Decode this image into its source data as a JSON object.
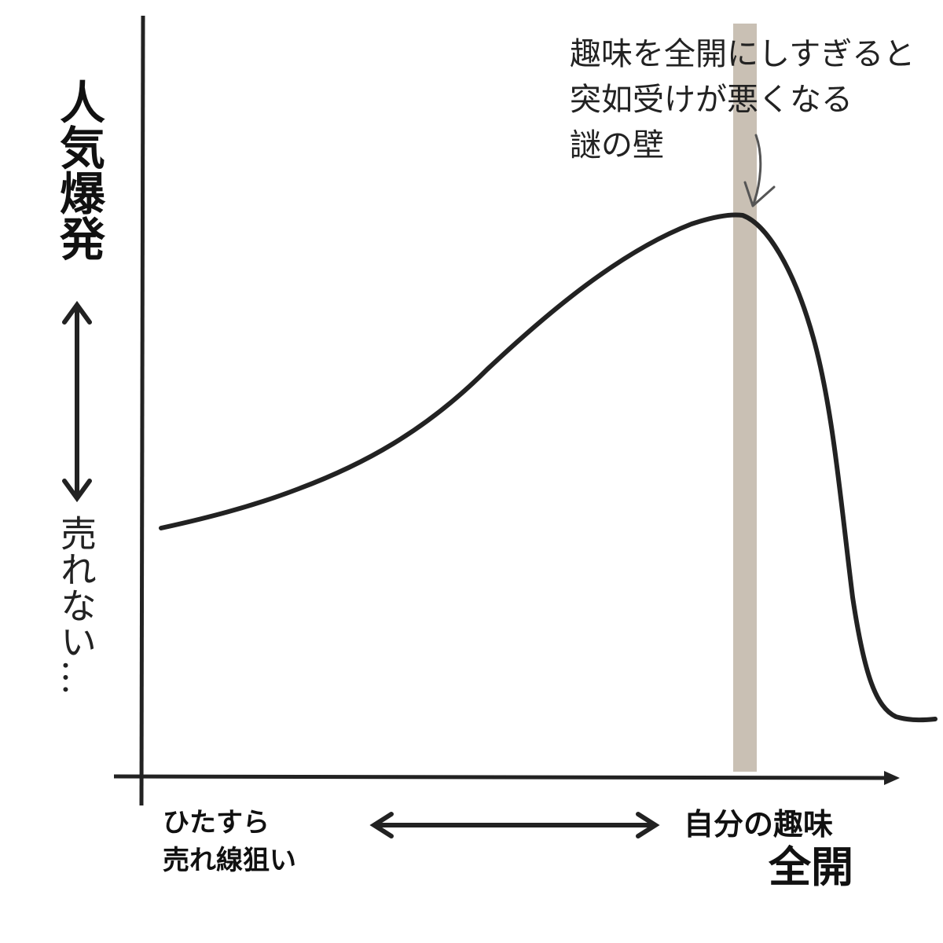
{
  "y_axis": {
    "top_label": "人気爆発",
    "bottom_label": "売れない…"
  },
  "x_axis": {
    "left_label": [
      "ひたすら",
      "売れ線狙い"
    ],
    "right_label": [
      "自分の趣味",
      "全開"
    ]
  },
  "annotation": {
    "lines": [
      "趣味を全開にしすぎると",
      "突如受けが悪くなる",
      "謎の壁"
    ]
  }
}
